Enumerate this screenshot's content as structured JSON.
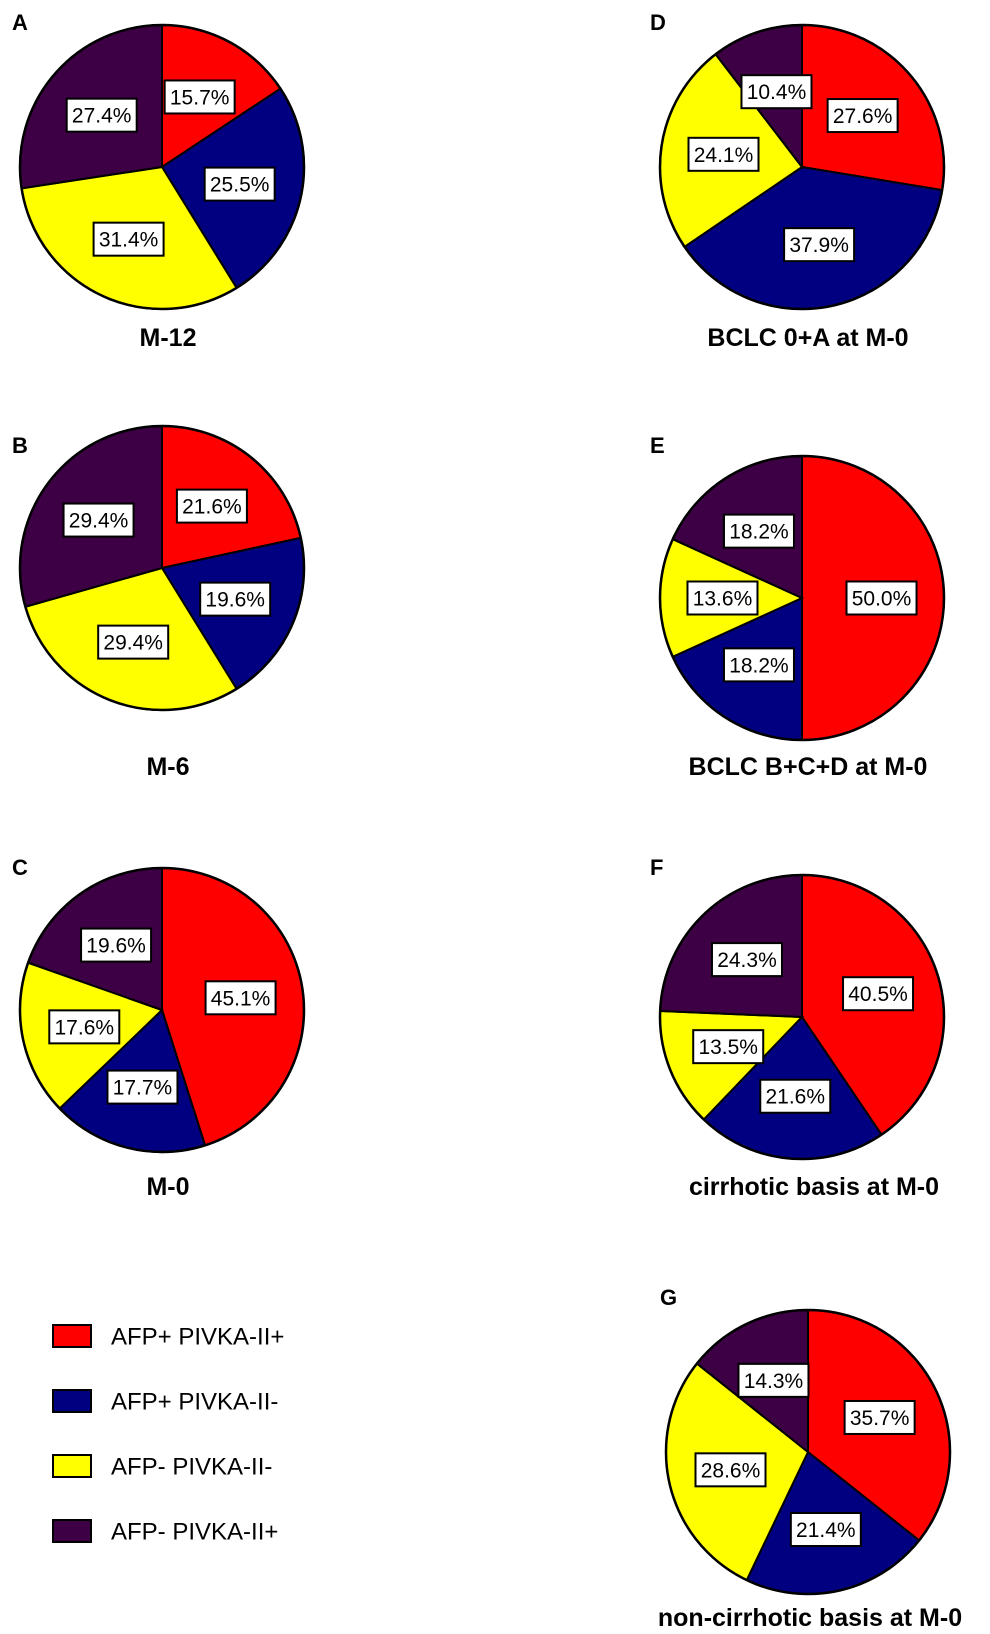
{
  "legend": {
    "items": [
      {
        "key": "afp_pos_pivka_pos",
        "label": "AFP+ PIVKA-II+",
        "color": "#ff0000"
      },
      {
        "key": "afp_pos_pivka_neg",
        "label": "AFP+ PIVKA-II-",
        "color": "#000080"
      },
      {
        "key": "afp_neg_pivka_neg",
        "label": "AFP-  PIVKA-II-",
        "color": "#ffff00"
      },
      {
        "key": "afp_neg_pivka_pos",
        "label": "AFP-  PIVKA-II+",
        "color": "#3d0045"
      }
    ]
  },
  "chart_data": [
    {
      "type": "pie",
      "panel": "A",
      "title": "M-12",
      "categories": [
        "AFP+ PIVKA-II+",
        "AFP+ PIVKA-II-",
        "AFP-  PIVKA-II-",
        "AFP-  PIVKA-II+"
      ],
      "values": [
        15.7,
        25.5,
        31.4,
        27.4
      ],
      "labels": [
        "15.7%",
        "25.5%",
        "31.4%",
        "27.4%"
      ]
    },
    {
      "type": "pie",
      "panel": "B",
      "title": "M-6",
      "categories": [
        "AFP+ PIVKA-II+",
        "AFP+ PIVKA-II-",
        "AFP-  PIVKA-II-",
        "AFP-  PIVKA-II+"
      ],
      "values": [
        21.6,
        19.6,
        29.4,
        29.4
      ],
      "labels": [
        "21.6%",
        "19.6%",
        "29.4%",
        "29.4%"
      ]
    },
    {
      "type": "pie",
      "panel": "C",
      "title": "M-0",
      "categories": [
        "AFP+ PIVKA-II+",
        "AFP+ PIVKA-II-",
        "AFP-  PIVKA-II-",
        "AFP-  PIVKA-II+"
      ],
      "values": [
        45.1,
        17.7,
        17.6,
        19.6
      ],
      "labels": [
        "45.1%",
        "17.7%",
        "17.6%",
        "19.6%"
      ]
    },
    {
      "type": "pie",
      "panel": "D",
      "title": "BCLC 0+A at M-0",
      "categories": [
        "AFP+ PIVKA-II+",
        "AFP+ PIVKA-II-",
        "AFP-  PIVKA-II-",
        "AFP-  PIVKA-II+"
      ],
      "values": [
        27.6,
        37.9,
        24.1,
        10.4
      ],
      "labels": [
        "27.6%",
        "37.9%",
        "24.1%",
        "10.4%"
      ]
    },
    {
      "type": "pie",
      "panel": "E",
      "title": "BCLC B+C+D at M-0",
      "categories": [
        "AFP+ PIVKA-II+",
        "AFP+ PIVKA-II-",
        "AFP-  PIVKA-II-",
        "AFP-  PIVKA-II+"
      ],
      "values": [
        50.0,
        18.2,
        13.6,
        18.2
      ],
      "labels": [
        "50.0%",
        "18.2%",
        "13.6%",
        "18.2%"
      ]
    },
    {
      "type": "pie",
      "panel": "F",
      "title": "cirrhotic basis at M-0",
      "categories": [
        "AFP+ PIVKA-II+",
        "AFP+ PIVKA-II-",
        "AFP-  PIVKA-II-",
        "AFP-  PIVKA-II+"
      ],
      "values": [
        40.5,
        21.6,
        13.5,
        24.3
      ],
      "labels": [
        "40.5%",
        "21.6%",
        "13.5%",
        "24.3%"
      ]
    },
    {
      "type": "pie",
      "panel": "G",
      "title": "non-cirrhotic basis at M-0",
      "categories": [
        "AFP+ PIVKA-II+",
        "AFP+ PIVKA-II-",
        "AFP-  PIVKA-II-",
        "AFP-  PIVKA-II+"
      ],
      "values": [
        35.7,
        21.4,
        28.6,
        14.3
      ],
      "labels": [
        "35.7%",
        "21.4%",
        "28.6%",
        "14.3%"
      ]
    }
  ]
}
